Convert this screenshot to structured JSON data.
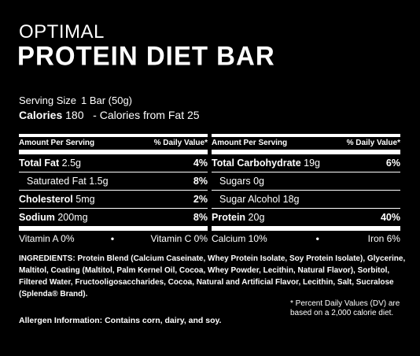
{
  "header": {
    "brand": "OPTIMAL",
    "product": "PROTEIN DIET BAR"
  },
  "serving": {
    "label": "Serving Size",
    "value": "1 Bar (50g)",
    "calories_label": "Calories",
    "calories_value": "180",
    "fat_calories": "-  Calories from Fat 25"
  },
  "left_panel": {
    "col_head_amount": "Amount Per Serving",
    "col_head_dv": "% Daily Value*",
    "rows": [
      {
        "name": "Total Fat",
        "amount": "2.5g",
        "dv": "4%"
      },
      {
        "name": "Saturated Fat",
        "amount": "1.5g",
        "dv": "8%"
      },
      {
        "name": "Cholesterol",
        "amount": "5mg",
        "dv": "2%"
      },
      {
        "name": "Sodium",
        "amount": "200mg",
        "dv": "8%"
      }
    ],
    "vit_a": "Vitamin A 0%",
    "dot": "•",
    "vit_c": "Vitamin C 0%"
  },
  "right_panel": {
    "col_head_amount": "Amount Per Serving",
    "col_head_dv": "% Daily Value*",
    "rows": [
      {
        "name": "Total Carbohydrate",
        "amount": "19g",
        "dv": "6%"
      },
      {
        "name": "Sugars",
        "amount": "0g",
        "dv": ""
      },
      {
        "name": "Sugar Alcohol",
        "amount": "18g",
        "dv": ""
      },
      {
        "name": "Protein",
        "amount": "20g",
        "dv": "40%"
      }
    ],
    "calcium": "Calcium 10%",
    "dot": "•",
    "iron": "Iron 6%"
  },
  "ingredients": {
    "label": "INGREDIENTS:",
    "text": "Protein Blend (Calcium Caseinate, Whey Protein Isolate, Soy Protein Isolate), Glycerine, Maltitol, Coating (Maltitol, Palm Kernel Oil, Cocoa, Whey Powder, Lecithin, Natural Flavor), Sorbitol, Filtered Water, Fructooligosaccharides, Cocoa, Natural and Artificial Flavor, Lecithin, Salt, Sucralose (Splenda® Brand)."
  },
  "allergen": "Allergen Information: Contains corn, dairy, and soy.",
  "dv_note": "* Percent Daily Values (DV) are based on a 2,000 calorie diet."
}
